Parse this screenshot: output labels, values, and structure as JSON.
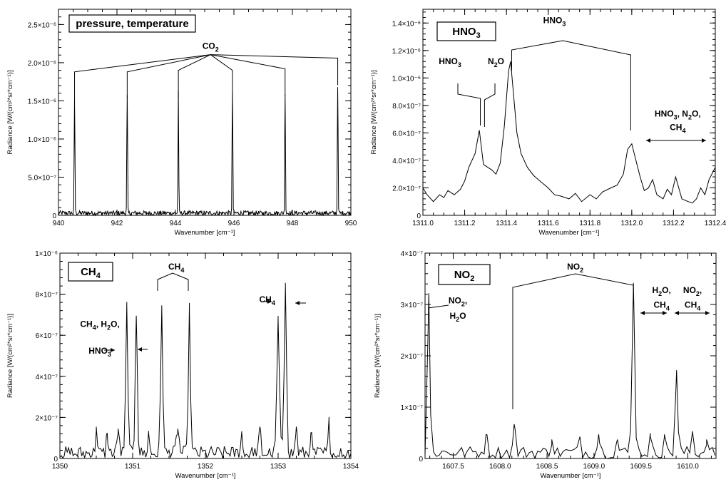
{
  "chart_data": [
    {
      "type": "line",
      "box_label": "pressure, temperature",
      "xlabel": "Wavenumber [cm⁻¹]",
      "ylabel": "Radiance [W/(cm²*sr*cm⁻¹)]",
      "xlim": [
        940,
        950
      ],
      "ylim": [
        0,
        2.7e-06
      ],
      "xticks": [
        940,
        942,
        944,
        946,
        948,
        950
      ],
      "xtick_labels": [
        "940",
        "942",
        "944",
        "946",
        "948",
        "950"
      ],
      "yticks": [
        0,
        5e-07,
        1e-06,
        1.5e-06,
        2e-06,
        2.5e-06
      ],
      "ytick_labels": [
        "0",
        "5.0×10⁻⁷",
        "1.0×10⁻⁶",
        "1.5×10⁻⁶",
        "2.0×10⁻⁶",
        "2.5×10⁻⁶"
      ],
      "baseline": 3e-08,
      "noise": 3e-08,
      "noise_step": 0.02,
      "peaks": [
        {
          "x": 940.55,
          "y": 1.5e-06,
          "w": 0.02
        },
        {
          "x": 942.35,
          "y": 1.55e-06,
          "w": 0.02
        },
        {
          "x": 944.1,
          "y": 1.6e-06,
          "w": 0.02
        },
        {
          "x": 945.95,
          "y": 1.6e-06,
          "w": 0.02
        },
        {
          "x": 947.75,
          "y": 1.55e-06,
          "w": 0.02
        },
        {
          "x": 949.55,
          "y": 1.65e-06,
          "w": 0.02
        }
      ],
      "annotations": [
        {
          "name": "co2",
          "text": "CO",
          "sub": "2",
          "x": 945.2,
          "y": 2.18e-06,
          "apex_y": 2.1e-06,
          "targets": [
            [
              940.55,
              1.88e-06
            ],
            [
              942.35,
              1.88e-06
            ],
            [
              944.1,
              1.9e-06
            ],
            [
              945.95,
              1.9e-06
            ],
            [
              947.75,
              1.92e-06
            ],
            [
              949.55,
              2.06e-06
            ]
          ]
        }
      ]
    },
    {
      "type": "line",
      "box_label": "HNO",
      "box_label_sub": "3",
      "xlabel": "Wavenumber [cm⁻¹]",
      "ylabel": "Radiance [W/(cm²*sr*cm⁻¹)]",
      "xlim": [
        1311.0,
        1312.4
      ],
      "ylim": [
        0,
        1.5e-06
      ],
      "xticks": [
        1311.0,
        1311.2,
        1311.4,
        1311.6,
        1311.8,
        1312.0,
        1312.2,
        1312.4
      ],
      "xtick_labels": [
        "1311.0",
        "1311.2",
        "1311.4",
        "1311.6",
        "1311.8",
        "1312.0",
        "1312.2",
        "1312.4"
      ],
      "yticks": [
        0,
        2e-07,
        4e-07,
        6e-07,
        8e-07,
        1e-06,
        1.2e-06,
        1.4e-06
      ],
      "ytick_labels": [
        "0",
        "2.0×10⁻⁷",
        "4.0×10⁻⁷",
        "6.0×10⁻⁷",
        "8.0×10⁻⁷",
        "1.0×10⁻⁶",
        "1.2×10⁻⁶",
        "1.4×10⁻⁶"
      ],
      "x": [
        1311.0,
        1311.02,
        1311.05,
        1311.08,
        1311.1,
        1311.12,
        1311.15,
        1311.18,
        1311.2,
        1311.22,
        1311.25,
        1311.27,
        1311.29,
        1311.31,
        1311.33,
        1311.35,
        1311.37,
        1311.39,
        1311.41,
        1311.42,
        1311.43,
        1311.45,
        1311.47,
        1311.5,
        1311.53,
        1311.56,
        1311.6,
        1311.63,
        1311.66,
        1311.7,
        1311.73,
        1311.76,
        1311.8,
        1311.83,
        1311.86,
        1311.9,
        1311.93,
        1311.96,
        1311.98,
        1312.0,
        1312.02,
        1312.04,
        1312.06,
        1312.08,
        1312.1,
        1312.12,
        1312.15,
        1312.17,
        1312.19,
        1312.21,
        1312.24,
        1312.27,
        1312.29,
        1312.31,
        1312.33,
        1312.35,
        1312.37,
        1312.4
      ],
      "y": [
        2e-07,
        1.5e-07,
        1e-07,
        1.5e-07,
        1.3e-07,
        1.8e-07,
        1.5e-07,
        1.9e-07,
        2.5e-07,
        3.5e-07,
        4.5e-07,
        6.2e-07,
        3.7e-07,
        3.5e-07,
        3.3e-07,
        3e-07,
        3.8e-07,
        6.5e-07,
        1.05e-06,
        1.12e-06,
        9.5e-07,
        6e-07,
        4.5e-07,
        3.5e-07,
        2.9e-07,
        2.5e-07,
        2e-07,
        1.5e-07,
        1.4e-07,
        1.2e-07,
        1.6e-07,
        1e-07,
        1.5e-07,
        1.2e-07,
        1.7e-07,
        2e-07,
        2.2e-07,
        3e-07,
        4.8e-07,
        5.2e-07,
        4e-07,
        2.8e-07,
        1.8e-07,
        2e-07,
        2.6e-07,
        1.5e-07,
        1.2e-07,
        1.9e-07,
        1.5e-07,
        2.8e-07,
        1.2e-07,
        1e-07,
        9e-08,
        1.2e-07,
        2e-07,
        1.5e-07,
        2.6e-07,
        3.5e-07
      ]
    },
    {
      "type": "line",
      "box_label": "CH",
      "box_label_sub": "4",
      "xlabel": "Wavenumber [cm⁻¹]",
      "ylabel": "Radiance [W/(cm²*sr*cm⁻¹)]",
      "xlim": [
        1350,
        1354
      ],
      "ylim": [
        0,
        1e-06
      ],
      "xticks": [
        1350,
        1351,
        1352,
        1353,
        1354
      ],
      "xtick_labels": [
        "1350",
        "1351",
        "1352",
        "1353",
        "1354"
      ],
      "yticks": [
        0,
        2e-07,
        4e-07,
        6e-07,
        8e-07,
        1e-06
      ],
      "ytick_labels": [
        "0",
        "2×10⁻⁷",
        "4×10⁻⁷",
        "6×10⁻⁷",
        "8×10⁻⁷",
        "1×10⁻⁶"
      ],
      "baseline": 2.5e-08,
      "noise": 3.5e-08,
      "noise_step": 0.02,
      "peaks": [
        {
          "x": 1350.5,
          "y": 1.3e-07,
          "w": 0.02
        },
        {
          "x": 1350.65,
          "y": 1e-07,
          "w": 0.02
        },
        {
          "x": 1350.8,
          "y": 1.2e-07,
          "w": 0.025
        },
        {
          "x": 1350.92,
          "y": 7.2e-07,
          "w": 0.025
        },
        {
          "x": 1351.05,
          "y": 6.7e-07,
          "w": 0.025
        },
        {
          "x": 1351.22,
          "y": 1e-07,
          "w": 0.02
        },
        {
          "x": 1351.4,
          "y": 7.2e-07,
          "w": 0.025
        },
        {
          "x": 1351.62,
          "y": 1.2e-07,
          "w": 0.03
        },
        {
          "x": 1351.78,
          "y": 7e-07,
          "w": 0.025
        },
        {
          "x": 1352.5,
          "y": 1e-07,
          "w": 0.02
        },
        {
          "x": 1352.75,
          "y": 1.3e-07,
          "w": 0.02
        },
        {
          "x": 1353.0,
          "y": 6.5e-07,
          "w": 0.03
        },
        {
          "x": 1353.1,
          "y": 8.3e-07,
          "w": 0.028
        },
        {
          "x": 1353.25,
          "y": 1.3e-07,
          "w": 0.02
        },
        {
          "x": 1353.45,
          "y": 1e-07,
          "w": 0.02
        },
        {
          "x": 1353.7,
          "y": 1.5e-07,
          "w": 0.02
        }
      ],
      "annotations": [
        {
          "name": "ch4-top",
          "text": "CH",
          "sub": "4",
          "x": 1351.6,
          "y": 9.2e-07
        },
        {
          "name": "ch4-right",
          "text": "CH",
          "sub": "4",
          "x": 1352.85,
          "y": 7.6e-07
        },
        {
          "name": "ch4-h2o-hno3-1",
          "text": "CH",
          "sub": "4",
          "after": ", H",
          "sub2": "2",
          "after2": "O,",
          "x": 1350.55,
          "y": 6.4e-07
        },
        {
          "name": "ch4-h2o-hno3-2",
          "text": "HNO",
          "sub": "3",
          "x": 1350.55,
          "y": 5.1e-07
        }
      ]
    },
    {
      "type": "line",
      "box_label": "NO",
      "box_label_sub": "2",
      "xlabel": "Wavenumber [cm⁻¹]",
      "ylabel": "Radiance [W/(cm²*sr*cm⁻¹)]",
      "xlim": [
        1607.2,
        1610.3
      ],
      "ylim": [
        0,
        4e-07
      ],
      "xticks": [
        1607.5,
        1608.0,
        1608.5,
        1609.0,
        1609.5,
        1610.0
      ],
      "xtick_labels": [
        "1607.5",
        "1608.0",
        "1608.5",
        "1609.0",
        "1609.5",
        "1610.0"
      ],
      "yticks": [
        0,
        1e-07,
        2e-07,
        3e-07,
        4e-07
      ],
      "ytick_labels": [
        "0",
        "1×10⁻⁷",
        "2×10⁻⁷",
        "3×10⁻⁷",
        "4×10⁻⁷"
      ],
      "baseline": 1.2e-08,
      "noise": 1.2e-08,
      "noise_step": 0.03,
      "peaks": [
        {
          "x": 1607.24,
          "y": 3.1e-07,
          "w": 0.02
        },
        {
          "x": 1607.85,
          "y": 3.5e-08,
          "w": 0.02
        },
        {
          "x": 1608.15,
          "y": 5.5e-08,
          "w": 0.02
        },
        {
          "x": 1608.55,
          "y": 2.5e-08,
          "w": 0.02
        },
        {
          "x": 1608.85,
          "y": 3e-08,
          "w": 0.02
        },
        {
          "x": 1609.05,
          "y": 3.5e-08,
          "w": 0.02
        },
        {
          "x": 1609.25,
          "y": 2.5e-08,
          "w": 0.02
        },
        {
          "x": 1609.42,
          "y": 3.3e-07,
          "w": 0.025
        },
        {
          "x": 1609.6,
          "y": 3e-08,
          "w": 0.02
        },
        {
          "x": 1609.75,
          "y": 3.5e-08,
          "w": 0.02
        },
        {
          "x": 1609.88,
          "y": 1.6e-07,
          "w": 0.02
        },
        {
          "x": 1610.05,
          "y": 4e-08,
          "w": 0.02
        },
        {
          "x": 1610.2,
          "y": 2.5e-08,
          "w": 0.02
        }
      ],
      "annotations": [
        {
          "name": "no2-top",
          "text": "NO",
          "sub": "2",
          "x": 1608.8,
          "y": 3.68e-07
        },
        {
          "name": "no2-h2o-a",
          "text": "NO",
          "sub": "2",
          "after": ",",
          "x": 1607.55,
          "y": 3.02e-07
        },
        {
          "name": "no2-h2o-b",
          "text": "H",
          "sub": "2",
          "after": "O",
          "x": 1607.55,
          "y": 2.72e-07
        },
        {
          "name": "h2o-ch4-a",
          "text": "H",
          "sub": "2",
          "after": "O,",
          "x": 1609.72,
          "y": 3.22e-07
        },
        {
          "name": "h2o-ch4-b",
          "text": "CH",
          "sub": "4",
          "x": 1609.72,
          "y": 2.94e-07
        },
        {
          "name": "no2-ch4-a",
          "text": "NO",
          "sub": "2",
          "after": ",",
          "x": 1610.05,
          "y": 3.22e-07
        },
        {
          "name": "no2-ch4-b",
          "text": "CH",
          "sub": "4",
          "x": 1610.05,
          "y": 2.94e-07
        }
      ]
    }
  ],
  "hno3_annotations": [
    {
      "name": "hno3-top",
      "text": "HNO",
      "sub": "3",
      "x": 1311.63,
      "y": 1.4e-06
    },
    {
      "name": "hno3-left",
      "text": "HNO",
      "sub": "3",
      "x": 1311.13,
      "y": 1.1e-06
    },
    {
      "name": "n2o",
      "text": "N",
      "sub": "2",
      "after": "O",
      "x": 1311.35,
      "y": 1.1e-06
    },
    {
      "name": "hno3-n2o-ch4-a",
      "text": "HNO",
      "sub": "3",
      "after": ", N",
      "sub2": "2",
      "after2": "O,",
      "x": 1312.22,
      "y": 7.2e-07
    },
    {
      "name": "hno3-n2o-ch4-b",
      "text": "CH",
      "sub": "4",
      "x": 1312.22,
      "y": 6.2e-07
    }
  ]
}
